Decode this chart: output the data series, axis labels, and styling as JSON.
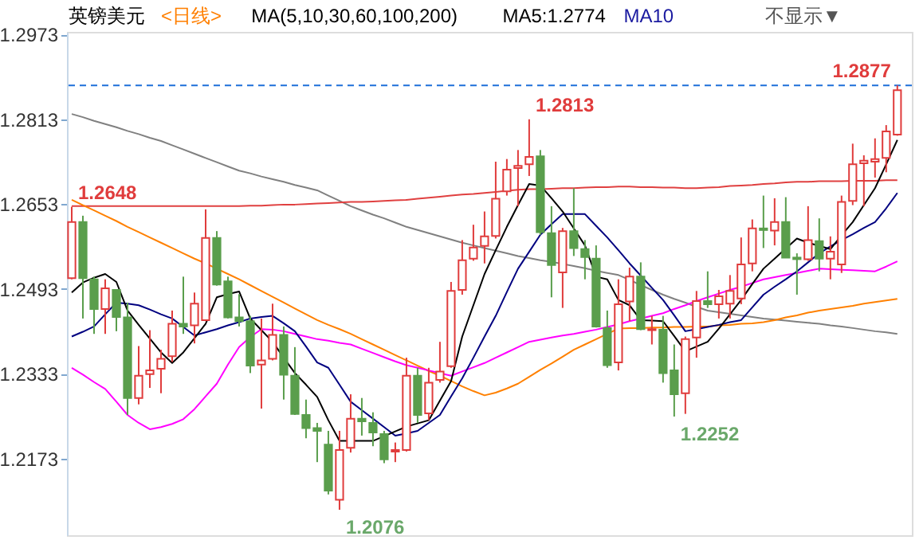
{
  "chart_data": {
    "type": "candlestick",
    "categories": [
      null,
      null,
      null,
      null,
      null,
      null,
      null,
      null,
      null,
      null,
      null,
      null,
      null,
      null,
      null,
      null,
      null,
      null,
      null,
      null,
      null,
      null,
      null,
      null,
      null,
      null,
      null,
      null,
      null,
      null,
      null,
      null,
      null,
      null,
      null,
      null,
      null,
      null,
      null,
      null,
      null,
      null,
      null,
      null,
      null,
      null,
      null,
      null,
      null,
      null,
      null,
      null,
      null,
      null,
      null,
      null,
      null,
      null,
      null,
      null,
      null,
      null,
      null,
      null,
      null,
      null,
      null,
      null,
      null,
      null,
      null,
      null,
      null,
      null,
      null
    ],
    "ohlc": [
      [
        1.2513,
        1.2648,
        1.2511,
        1.2619
      ],
      [
        1.2619,
        1.2631,
        1.2437,
        1.2513
      ],
      [
        1.2511,
        1.2516,
        1.2408,
        1.2455
      ],
      [
        1.2455,
        1.2511,
        1.2408,
        1.2494
      ],
      [
        1.2491,
        1.2491,
        1.2413,
        1.244
      ],
      [
        1.2439,
        1.2467,
        1.2255,
        1.2287
      ],
      [
        1.2287,
        1.2385,
        1.2275,
        1.2329
      ],
      [
        1.2332,
        1.2415,
        1.2306,
        1.2339
      ],
      [
        1.2342,
        1.2378,
        1.2296,
        1.2361
      ],
      [
        1.2366,
        1.2452,
        1.2355,
        1.2427
      ],
      [
        1.2427,
        1.2516,
        1.2408,
        1.2422
      ],
      [
        1.2424,
        1.2486,
        1.239,
        1.2465
      ],
      [
        1.2434,
        1.2643,
        1.2432,
        1.2589
      ],
      [
        1.2589,
        1.2602,
        1.2499,
        1.2501
      ],
      [
        1.2507,
        1.2516,
        1.2437,
        1.2439
      ],
      [
        1.2439,
        1.2483,
        1.2422,
        1.2432
      ],
      [
        1.2432,
        1.2442,
        1.2334,
        1.2348
      ],
      [
        1.235,
        1.2437,
        1.2267,
        1.2358
      ],
      [
        1.2361,
        1.2465,
        1.2358,
        1.2406
      ],
      [
        1.2406,
        1.2422,
        1.2284,
        1.2331
      ],
      [
        1.2329,
        1.2383,
        1.2255,
        1.2257
      ],
      [
        1.2255,
        1.2284,
        1.2211,
        1.223
      ],
      [
        1.223,
        1.224,
        1.2166,
        1.2225
      ],
      [
        1.2199,
        1.2225,
        1.2105,
        1.2112
      ],
      [
        1.2095,
        1.2225,
        1.2076,
        1.2189
      ],
      [
        1.2193,
        1.2294,
        1.2184,
        1.2248
      ],
      [
        1.2248,
        1.2287,
        1.2216,
        1.2243
      ],
      [
        1.224,
        1.226,
        1.2196,
        1.2222
      ],
      [
        1.2219,
        1.2225,
        1.2164,
        1.2171
      ],
      [
        1.2186,
        1.2203,
        1.2166,
        1.2189
      ],
      [
        1.2189,
        1.2363,
        1.2186,
        1.2329
      ],
      [
        1.2329,
        1.2344,
        1.224,
        1.2255
      ],
      [
        1.2258,
        1.2344,
        1.2245,
        1.2316
      ],
      [
        1.2321,
        1.2393,
        1.2316,
        1.2337
      ],
      [
        1.2347,
        1.2506,
        1.2344,
        1.2489
      ],
      [
        1.2491,
        1.2585,
        1.2482,
        1.2547
      ],
      [
        1.255,
        1.2614,
        1.2546,
        1.2571
      ],
      [
        1.2574,
        1.2639,
        1.2541,
        1.2592
      ],
      [
        1.2593,
        1.2733,
        1.2588,
        1.2663
      ],
      [
        1.2677,
        1.2738,
        1.2669,
        1.2718
      ],
      [
        1.2721,
        1.2755,
        1.2649,
        1.2725
      ],
      [
        1.2728,
        1.2813,
        1.2706,
        1.2742
      ],
      [
        1.2743,
        1.2755,
        1.2595,
        1.26
      ],
      [
        1.2598,
        1.2649,
        1.2477,
        1.2538
      ],
      [
        1.2524,
        1.2608,
        1.2457,
        1.2602
      ],
      [
        1.2602,
        1.2683,
        1.2555,
        1.257
      ],
      [
        1.2568,
        1.2585,
        1.2511,
        1.2553
      ],
      [
        1.255,
        1.2575,
        1.242,
        1.2422
      ],
      [
        1.2419,
        1.2452,
        1.2344,
        1.2349
      ],
      [
        1.2354,
        1.2511,
        1.2339,
        1.2464
      ],
      [
        1.2469,
        1.2533,
        1.2432,
        1.2516
      ],
      [
        1.2516,
        1.2543,
        1.2415,
        1.2417
      ],
      [
        1.2415,
        1.2442,
        1.2388,
        1.2417
      ],
      [
        1.2416,
        1.2442,
        1.2316,
        1.2334
      ],
      [
        1.2339,
        1.2388,
        1.2252,
        1.2294
      ],
      [
        1.2296,
        1.2403,
        1.2257,
        1.2398
      ],
      [
        1.2401,
        1.2489,
        1.2363,
        1.247
      ],
      [
        1.247,
        1.2526,
        1.2457,
        1.2464
      ],
      [
        1.2464,
        1.2491,
        1.2437,
        1.2479
      ],
      [
        1.2465,
        1.2519,
        1.2437,
        1.2489
      ],
      [
        1.2475,
        1.259,
        1.2464,
        1.2539
      ],
      [
        1.2541,
        1.2624,
        1.2526,
        1.2607
      ],
      [
        1.2607,
        1.2669,
        1.257,
        1.2604
      ],
      [
        1.2603,
        1.2664,
        1.2575,
        1.2619
      ],
      [
        1.2619,
        1.2666,
        1.2552,
        1.2552
      ],
      [
        1.2552,
        1.256,
        1.2482,
        1.2549
      ],
      [
        1.2549,
        1.2649,
        1.2546,
        1.2585
      ],
      [
        1.2583,
        1.2626,
        1.2526,
        1.255
      ],
      [
        1.255,
        1.2592,
        1.2511,
        1.2563
      ],
      [
        1.2539,
        1.2669,
        1.2523,
        1.2657
      ],
      [
        1.2659,
        1.2767,
        1.2651,
        1.2728
      ],
      [
        1.273,
        1.2745,
        1.2649,
        1.2735
      ],
      [
        1.2733,
        1.2777,
        1.2703,
        1.2738
      ],
      [
        1.274,
        1.2802,
        1.2713,
        1.279
      ],
      [
        1.2784,
        1.2877,
        1.2782,
        1.2868
      ]
    ],
    "series": [
      {
        "type": "line",
        "color": "#808080",
        "values": [
          1.2823,
          1.2817,
          1.281,
          1.2804,
          1.2798,
          1.2791,
          1.2785,
          1.2778,
          1.2772,
          1.2764,
          1.2756,
          1.2748,
          1.274,
          1.2732,
          1.2724,
          1.2716,
          1.2711,
          1.2705,
          1.27,
          1.2695,
          1.2689,
          1.2684,
          1.2679,
          1.2669,
          1.2659,
          1.2649,
          1.2641,
          1.2633,
          1.2626,
          1.2618,
          1.261,
          1.2604,
          1.2598,
          1.2592,
          1.2586,
          1.258,
          1.2575,
          1.257,
          1.2565,
          1.256,
          1.2555,
          1.2551,
          1.2547,
          1.2544,
          1.254,
          1.2536,
          1.2532,
          1.2527,
          1.2523,
          1.2519,
          1.251,
          1.25,
          1.2491,
          1.2482,
          1.2474,
          1.2467,
          1.2459,
          1.2452,
          1.2449,
          1.2446,
          1.2443,
          1.244,
          1.2437,
          1.2435,
          1.2433,
          1.2431,
          1.2429,
          1.2427,
          1.2424,
          1.2422,
          1.2419,
          1.2416,
          1.2413,
          1.2411,
          1.2408
        ]
      },
      {
        "type": "line",
        "color": "#e04040",
        "values": [
          1.2649,
          1.2649,
          1.2649,
          1.2649,
          1.2649,
          1.2649,
          1.2649,
          1.2649,
          1.2649,
          1.2649,
          1.2649,
          1.2649,
          1.2649,
          1.2649,
          1.2649,
          1.2649,
          1.265,
          1.265,
          1.2651,
          1.2652,
          1.2652,
          1.2653,
          1.2654,
          1.2655,
          1.2656,
          1.2657,
          1.2657,
          1.2658,
          1.2659,
          1.266,
          1.2661,
          1.2663,
          1.2665,
          1.2667,
          1.2669,
          1.2671,
          1.2672,
          1.2674,
          1.2676,
          1.2678,
          1.268,
          1.2681,
          1.2681,
          1.2682,
          1.2683,
          1.2683,
          1.2684,
          1.2685,
          1.2685,
          1.2686,
          1.2686,
          1.2685,
          1.2685,
          1.2684,
          1.2684,
          1.2683,
          1.2683,
          1.2684,
          1.2685,
          1.2687,
          1.2688,
          1.2689,
          1.2691,
          1.2692,
          1.2694,
          1.2695,
          1.2695,
          1.2696,
          1.2696,
          1.2696,
          1.2697,
          1.2697,
          1.2697,
          1.2698,
          1.2698
        ]
      },
      {
        "type": "line",
        "color": "#ff8000",
        "values": [
          1.2661,
          1.2651,
          1.2641,
          1.2631,
          1.2621,
          1.261,
          1.26,
          1.259,
          1.258,
          1.257,
          1.256,
          1.255,
          1.2541,
          1.2531,
          1.2521,
          1.2511,
          1.25,
          1.2489,
          1.2478,
          1.2467,
          1.2456,
          1.2445,
          1.2434,
          1.2425,
          1.2417,
          1.2408,
          1.2398,
          1.2388,
          1.2378,
          1.2368,
          1.2358,
          1.2348,
          1.2338,
          1.2329,
          1.2319,
          1.2309,
          1.23,
          1.2292,
          1.2297,
          1.2305,
          1.2314,
          1.2327,
          1.234,
          1.2352,
          1.2365,
          1.2378,
          1.2388,
          1.2398,
          1.2408,
          1.2418,
          1.2419,
          1.2419,
          1.242,
          1.242,
          1.2421,
          1.2421,
          1.2422,
          1.2422,
          1.2424,
          1.2425,
          1.2427,
          1.2428,
          1.243,
          1.2434,
          1.2439,
          1.2443,
          1.2448,
          1.2452,
          1.2455,
          1.2458,
          1.2461,
          1.2465,
          1.2468,
          1.2471,
          1.2474
        ]
      },
      {
        "type": "line",
        "color": "#ff00ff",
        "values": [
          1.2344,
          1.2331,
          1.2317,
          1.2304,
          1.228,
          1.2255,
          1.224,
          1.2228,
          1.2232,
          1.2238,
          1.2247,
          1.2266,
          1.229,
          1.2314,
          1.235,
          1.2383,
          1.2402,
          1.2417,
          1.2416,
          1.2413,
          1.2408,
          1.2403,
          1.2398,
          1.2395,
          1.2391,
          1.2388,
          1.238,
          1.2372,
          1.2364,
          1.2356,
          1.2349,
          1.2344,
          1.2339,
          1.2334,
          1.2329,
          1.2337,
          1.2345,
          1.2353,
          1.2363,
          1.2373,
          1.2383,
          1.2393,
          1.2397,
          1.2401,
          1.2405,
          1.2408,
          1.2412,
          1.2416,
          1.2421,
          1.2426,
          1.2432,
          1.2437,
          1.2442,
          1.2447,
          1.2455,
          1.2462,
          1.247,
          1.2477,
          1.2484,
          1.2491,
          1.2497,
          1.2504,
          1.2511,
          1.2515,
          1.2519,
          1.2523,
          1.2527,
          1.2531,
          1.253,
          1.2529,
          1.2528,
          1.2527,
          1.2526,
          1.2535,
          1.2545
        ]
      },
      {
        "type": "line",
        "color": "#000080",
        "values": [
          1.2403,
          1.2412,
          1.2422,
          1.2445,
          1.2467,
          1.2465,
          1.2462,
          1.2454,
          1.2445,
          1.2437,
          1.2421,
          1.2405,
          1.2411,
          1.2417,
          1.2424,
          1.243,
          1.2437,
          1.244,
          1.2442,
          1.2428,
          1.2413,
          1.2384,
          1.2354,
          1.2344,
          1.2312,
          1.228,
          1.2264,
          1.2248,
          1.2232,
          1.2216,
          1.222,
          1.2225,
          1.224,
          1.2255,
          1.229,
          1.2324,
          1.2363,
          1.2403,
          1.2442,
          1.2487,
          1.2531,
          1.2563,
          1.2595,
          1.2615,
          1.2634,
          1.2634,
          1.2634,
          1.2612,
          1.259,
          1.2566,
          1.2541,
          1.2518,
          1.2495,
          1.2472,
          1.2443,
          1.2413,
          1.2417,
          1.2421,
          1.2425,
          1.243,
          1.2434,
          1.2458,
          1.2482,
          1.2497,
          1.2511,
          1.2526,
          1.2543,
          1.256,
          1.2573,
          1.2585,
          1.2596,
          1.2608,
          1.2619,
          1.2645,
          1.2674
        ]
      },
      {
        "type": "line",
        "color": "#000000",
        "values": [
          1.2486,
          1.2505,
          1.2514,
          1.2521,
          1.2506,
          1.2452,
          1.2425,
          1.2399,
          1.2373,
          1.2353,
          1.2373,
          1.24,
          1.2427,
          1.2477,
          1.2483,
          1.2488,
          1.2437,
          1.2415,
          1.2393,
          1.2363,
          1.2334,
          1.2312,
          1.2289,
          1.2245,
          1.2206,
          1.2206,
          1.2206,
          1.2206,
          1.2215,
          1.2224,
          1.2233,
          1.2239,
          1.2245,
          1.2282,
          1.2319,
          1.2403,
          1.2462,
          1.2521,
          1.2566,
          1.261,
          1.2651,
          1.2691,
          1.2688,
          1.2664,
          1.2639,
          1.2607,
          1.2575,
          1.2516,
          1.2511,
          1.2472,
          1.2462,
          1.2434,
          1.2433,
          1.2432,
          1.2404,
          1.2375,
          1.2384,
          1.2393,
          1.2418,
          1.2445,
          1.2472,
          1.2502,
          1.2531,
          1.255,
          1.2569,
          1.2588,
          1.258,
          1.2574,
          1.2568,
          1.2594,
          1.2619,
          1.2651,
          1.2683,
          1.2728,
          1.2774
        ]
      }
    ],
    "ylim": [
      1.2028,
      1.2978
    ],
    "yticks": [
      1.2973,
      1.2813,
      1.2653,
      1.2493,
      1.2333,
      1.2173
    ],
    "tick_labels": "y",
    "grid": false,
    "ref_lines": [
      {
        "axis": "y",
        "value": 1.2877,
        "label": null,
        "color": "#1e6fd9",
        "line_style": "dashed"
      }
    ],
    "annotations": [
      "英镑美元",
      "<日线>",
      "MA(5,10,30,60,100,200)",
      "MA5:1.2774",
      "MA10",
      "不显示▼",
      {
        "text": "1.2648",
        "y": 1.2648
      },
      "1.2813",
      "1.2076",
      "1.2252",
      {
        "text": "1.2877",
        "y": 1.2877
      }
    ]
  }
}
